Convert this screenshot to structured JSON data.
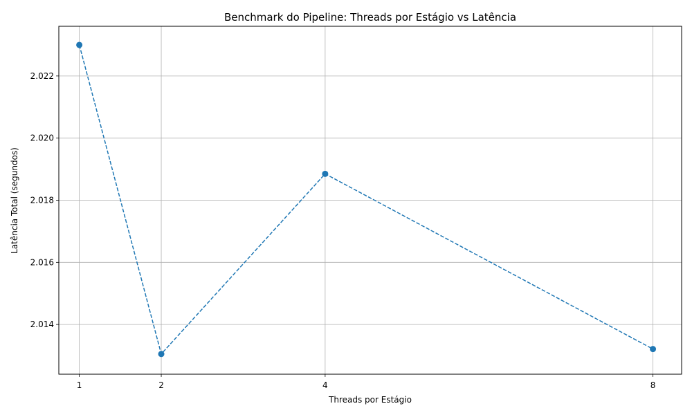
{
  "chart_data": {
    "type": "line",
    "title": "Benchmark do Pipeline: Threads por Estágio vs Latência",
    "xlabel": "Threads por Estágio",
    "ylabel": "Latência Total (segundos)",
    "x": [
      1,
      2,
      4,
      8
    ],
    "x_ticks": [
      1,
      2,
      4,
      8
    ],
    "x_tick_labels": [
      "1",
      "2",
      "4",
      "8"
    ],
    "xlim": [
      0.75,
      8.35
    ],
    "y_ticks": [
      2.014,
      2.016,
      2.018,
      2.02,
      2.022
    ],
    "y_tick_labels": [
      "2.014",
      "2.016",
      "2.018",
      "2.020",
      "2.022"
    ],
    "ylim": [
      2.0124,
      2.0236
    ],
    "series": [
      {
        "values": [
          2.023,
          2.01305,
          2.01885,
          2.01321
        ],
        "color": "#1f77b4",
        "line_style": "dashed",
        "marker": "circle"
      }
    ],
    "grid": true,
    "legend": false
  }
}
